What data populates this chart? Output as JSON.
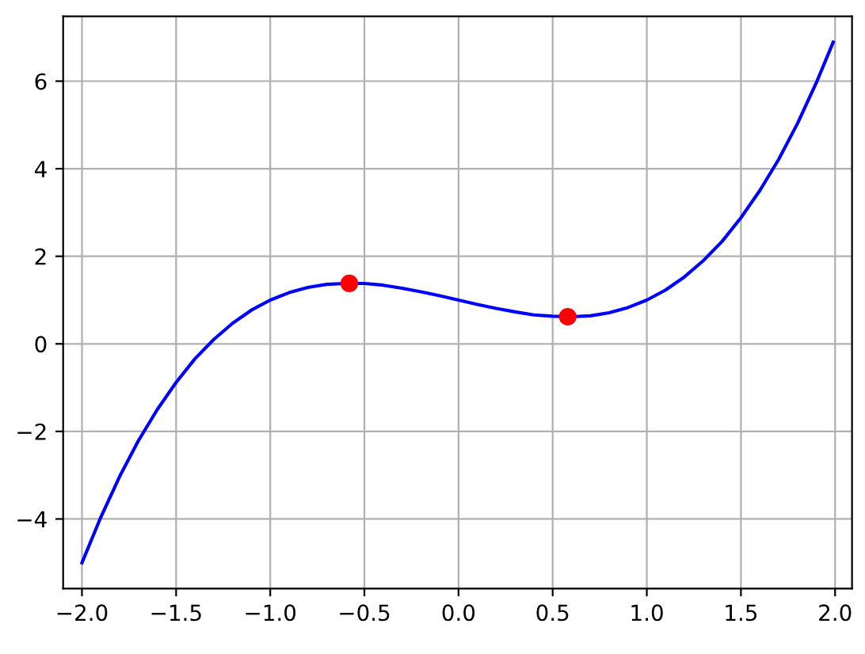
{
  "chart_data": {
    "type": "line",
    "grid": true,
    "xlim": [
      -2.1,
      2.09
    ],
    "ylim": [
      -5.59,
      7.48
    ],
    "xticks": [
      {
        "value": -2,
        "label": "−2.0"
      },
      {
        "value": -1.5,
        "label": "−1.5"
      },
      {
        "value": -1,
        "label": "−1.0"
      },
      {
        "value": -0.5,
        "label": "−0.5"
      },
      {
        "value": 0,
        "label": "0.0"
      },
      {
        "value": 0.5,
        "label": "0.5"
      },
      {
        "value": 1,
        "label": "1.0"
      },
      {
        "value": 1.5,
        "label": "1.5"
      },
      {
        "value": 2,
        "label": "2.0"
      }
    ],
    "yticks": [
      {
        "value": -4,
        "label": "−4"
      },
      {
        "value": -2,
        "label": "−2"
      },
      0,
      2,
      4,
      6
    ],
    "series": [
      {
        "color": "#0000ff",
        "marker": "none",
        "x": [
          -2,
          -1.9,
          -1.8,
          -1.7,
          -1.6,
          -1.5,
          -1.4,
          -1.3,
          -1.2,
          -1.1,
          -1,
          -0.9,
          -0.8,
          -0.7,
          -0.6,
          -0.5,
          -0.4,
          -0.3,
          -0.2,
          -0.1,
          0,
          0.1,
          0.2,
          0.3,
          0.4,
          0.5,
          0.6,
          0.7,
          0.8,
          0.9,
          1,
          1.1,
          1.2,
          1.3,
          1.4,
          1.5,
          1.6,
          1.7,
          1.8,
          1.9,
          1.99
        ],
        "values": [
          -5,
          -3.96,
          -3.03,
          -2.21,
          -1.5,
          -0.88,
          -0.34,
          0.1,
          0.47,
          0.77,
          1,
          1.17,
          1.29,
          1.36,
          1.38,
          1.38,
          1.34,
          1.27,
          1.19,
          1.1,
          1,
          0.9,
          0.81,
          0.73,
          0.66,
          0.63,
          0.62,
          0.64,
          0.71,
          0.83,
          1,
          1.23,
          1.53,
          1.9,
          2.34,
          2.88,
          3.5,
          4.21,
          5.03,
          5.96,
          6.89
        ]
      },
      {
        "type": "scatter",
        "color": "#ff0000",
        "marker": "circle",
        "x": [
          -0.58,
          0.58
        ],
        "values": [
          1.38,
          0.62
        ]
      }
    ]
  }
}
